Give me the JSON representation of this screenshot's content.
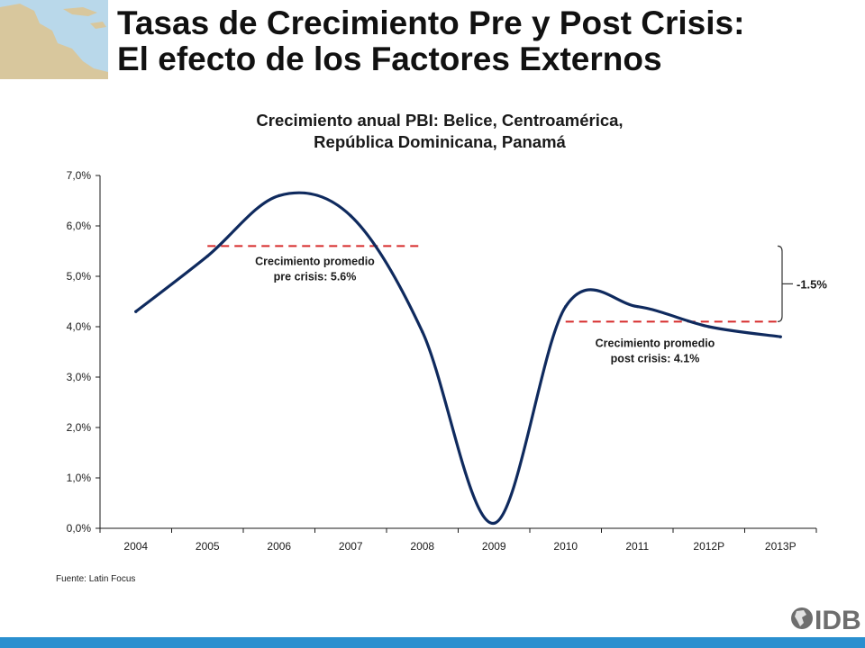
{
  "slide": {
    "title_line1": "Tasas de Crecimiento Pre y Post Crisis:",
    "title_line2": "El efecto de los Factores Externos",
    "source": "Fuente: Latin Focus",
    "logo_text": "IDB"
  },
  "colors": {
    "series_line": "#0f2a5e",
    "average_lines": "#d62b2b",
    "axis": "#1a1a1a",
    "bottom_bar": "#2a8fcf",
    "map_sea": "#b9d8ea",
    "map_land": "#d8c79d"
  },
  "chart_data": {
    "type": "line",
    "title_line1": "Crecimiento anual PBI: Belice, Centroamérica,",
    "title_line2": "República Dominicana, Panamá",
    "categories": [
      "2004",
      "2005",
      "2006",
      "2007",
      "2008",
      "2009",
      "2010",
      "2011",
      "2012P",
      "2013P"
    ],
    "series": [
      {
        "values": [
          4.3,
          5.4,
          6.6,
          6.2,
          3.9,
          0.1,
          4.4,
          4.4,
          4.0,
          3.8
        ]
      }
    ],
    "y_ticks": [
      "0,0%",
      "1,0%",
      "2,0%",
      "3,0%",
      "4,0%",
      "5,0%",
      "6,0%",
      "7,0%"
    ],
    "ylim": [
      0,
      7
    ],
    "grid": false,
    "reference_lines": [
      {
        "from": "2005",
        "to": "2008",
        "value": 5.6,
        "style": "dashed",
        "label_line1": "Crecimiento promedio",
        "label_line2": "pre crisis: 5.6%"
      },
      {
        "from": "2010",
        "to": "2013P",
        "value": 4.1,
        "style": "dashed",
        "label_line1": "Crecimiento promedio",
        "label_line2": "post crisis: 4.1%"
      }
    ],
    "difference_label": "-1.5%"
  }
}
